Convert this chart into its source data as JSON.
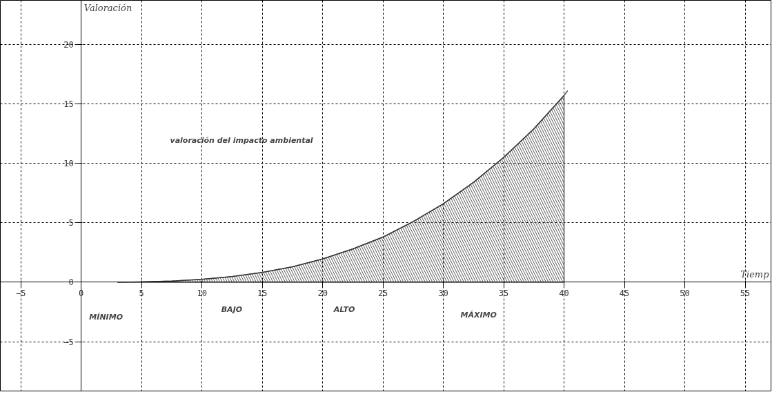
{
  "chart_data": {
    "type": "line",
    "title": "valoración del impacto ambiental",
    "xlabel": "Tiemp",
    "ylabel": "Valoración",
    "xlim": [
      -6.7,
      57.2
    ],
    "ylim": [
      -9.2,
      23.7
    ],
    "xticks": [
      -5,
      0,
      5,
      10,
      15,
      20,
      25,
      30,
      35,
      40,
      45,
      50,
      55
    ],
    "yticks": [
      -5,
      0,
      5,
      10,
      15,
      20
    ],
    "grid": true,
    "marker": "none",
    "line_style": "solid",
    "series": [
      {
        "type": "area",
        "color": "#555555",
        "x": [
          3,
          5,
          7.5,
          10,
          12.5,
          15,
          17.5,
          20,
          22.5,
          25,
          27.5,
          30,
          32.5,
          35,
          37.5,
          40
        ],
        "values": [
          0,
          0.03,
          0.1,
          0.25,
          0.48,
          0.83,
          1.3,
          1.96,
          2.8,
          3.8,
          5.1,
          6.6,
          8.4,
          10.5,
          12.9,
          15.7
        ]
      },
      {
        "color": "#333333",
        "x": [
          3,
          5,
          7.5,
          10,
          12.5,
          15,
          17.5,
          20,
          22.5,
          25,
          27.5,
          30,
          32.5,
          35,
          37.5,
          40,
          40.3
        ],
        "values": [
          0,
          0.03,
          0.1,
          0.25,
          0.48,
          0.83,
          1.3,
          1.96,
          2.8,
          3.8,
          5.1,
          6.6,
          8.4,
          10.5,
          12.9,
          15.7,
          16.1
        ]
      }
    ],
    "annotations": [
      "MÍNIMO",
      "BAJO",
      "ALTO",
      "MÁXIMO"
    ]
  }
}
